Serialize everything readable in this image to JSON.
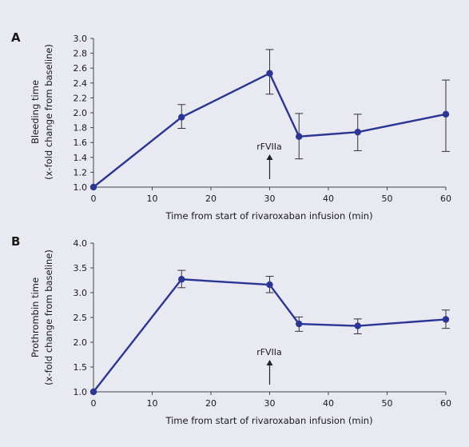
{
  "chart_data": [
    {
      "panel_label": "A",
      "type": "line",
      "xlabel": "Time from start of rivaroxaban infusion (min)",
      "ylabel_line1": "Bleeding time",
      "ylabel_line2": "(x-fold change from baseline)",
      "xlim": [
        0,
        60
      ],
      "ylim": [
        1.0,
        3.0
      ],
      "xticks": [
        0,
        10,
        20,
        30,
        40,
        50,
        60
      ],
      "yticks": [
        1.0,
        1.2,
        1.4,
        1.6,
        1.8,
        2.0,
        2.2,
        2.4,
        2.6,
        2.8,
        3.0
      ],
      "ytick_decimals": 1,
      "series": [
        {
          "x": [
            0,
            15,
            30,
            35,
            45,
            60
          ],
          "y": [
            1.0,
            1.94,
            2.53,
            1.68,
            1.74,
            1.98
          ],
          "err_low": [
            null,
            1.79,
            2.25,
            1.38,
            1.49,
            1.48
          ],
          "err_high": [
            null,
            2.11,
            2.85,
            1.99,
            1.98,
            2.44
          ]
        }
      ],
      "annotation": {
        "text": "rFVIIa",
        "x": 30
      },
      "grid": false,
      "line_color": "#2b3595"
    },
    {
      "panel_label": "B",
      "type": "line",
      "xlabel": "Time from start of rivaroxaban infusion (min)",
      "ylabel_line1": "Prothrombin time",
      "ylabel_line2": "(x-fold change from baseline)",
      "xlim": [
        0,
        60
      ],
      "ylim": [
        1.0,
        4.0
      ],
      "xticks": [
        0,
        10,
        20,
        30,
        40,
        50,
        60
      ],
      "yticks": [
        1.0,
        1.5,
        2.0,
        2.5,
        3.0,
        3.5,
        4.0
      ],
      "ytick_decimals": 1,
      "series": [
        {
          "x": [
            0,
            15,
            30,
            35,
            45,
            60
          ],
          "y": [
            1.0,
            3.27,
            3.16,
            2.37,
            2.33,
            2.46
          ],
          "err_low": [
            null,
            3.1,
            3.0,
            2.22,
            2.17,
            2.28
          ],
          "err_high": [
            null,
            3.45,
            3.33,
            2.51,
            2.47,
            2.65
          ]
        }
      ],
      "annotation": {
        "text": "rFVIIa",
        "x": 30
      },
      "grid": false,
      "line_color": "#2b3595"
    }
  ]
}
